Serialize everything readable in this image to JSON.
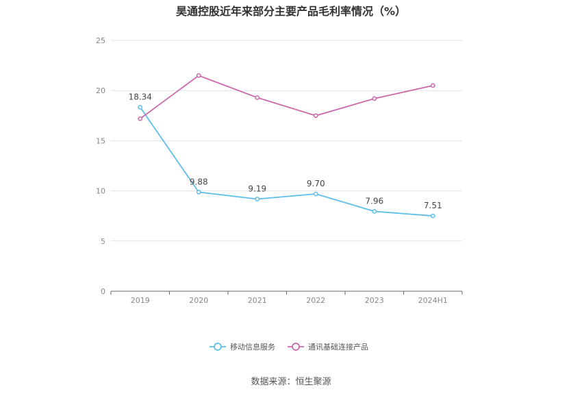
{
  "source_text": "数据来源：恒生聚源",
  "chart_data": {
    "type": "line",
    "title": "昊通控股近年来部分主要产品毛利率情况（%）",
    "categories": [
      "2019",
      "2020",
      "2021",
      "2022",
      "2023",
      "2024H1"
    ],
    "ylim": [
      0,
      25
    ],
    "yticks": [
      0,
      5,
      10,
      15,
      20,
      25
    ],
    "grid": true,
    "legend_position": "bottom",
    "series": [
      {
        "name": "移动信息服务",
        "color": "#5bbdea",
        "values": [
          18.34,
          9.88,
          9.19,
          9.7,
          7.96,
          7.51
        ],
        "labels": [
          "18.34",
          "9.88",
          "9.19",
          "9.70",
          "7.96",
          "7.51"
        ]
      },
      {
        "name": "通讯基础连接产品",
        "color": "#cc66aa",
        "values": [
          17.2,
          21.5,
          19.3,
          17.5,
          19.2,
          20.5
        ]
      }
    ]
  }
}
